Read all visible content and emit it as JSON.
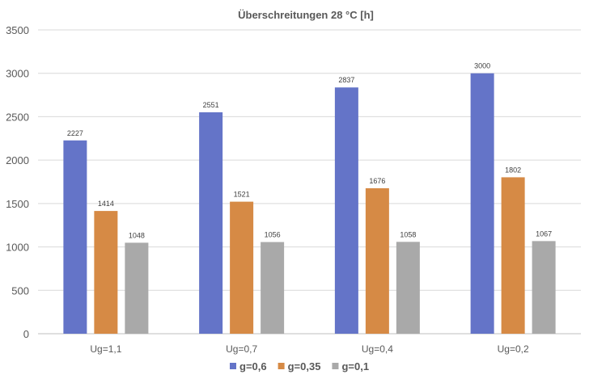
{
  "chart_data": {
    "type": "bar",
    "title": "Überschreitungen 28 °C [h]",
    "xlabel": "",
    "ylabel": "",
    "categories": [
      "Ug=1,1",
      "Ug=0,7",
      "Ug=0,4",
      "Ug=0,2"
    ],
    "series": [
      {
        "name": "g=0,6",
        "color": "#6474c8",
        "values": [
          2227,
          2551,
          2837,
          3000
        ]
      },
      {
        "name": "g=0,35",
        "color": "#d68a45",
        "values": [
          1414,
          1521,
          1676,
          1802
        ]
      },
      {
        "name": "g=0,1",
        "color": "#a9a9a9",
        "values": [
          1048,
          1056,
          1058,
          1067
        ]
      }
    ],
    "ylim": [
      0,
      3500
    ],
    "yticks": [
      0,
      500,
      1000,
      1500,
      2000,
      2500,
      3000,
      3500
    ],
    "grid": true,
    "legend": "bottom",
    "data_labels": true
  }
}
